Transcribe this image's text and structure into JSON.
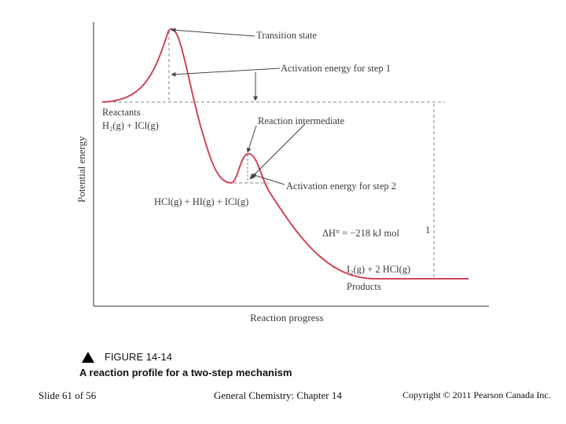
{
  "figure": {
    "axes": {
      "x_label": "Reaction progress",
      "y_label": "Potential energy"
    },
    "labels": {
      "transition_state": "Transition state",
      "activation_step1": "Activation energy for step 1",
      "reactants": "Reactants",
      "reactants_formula": "H₂(g) +   ICl(g)",
      "reaction_intermediate": "Reaction intermediate",
      "activation_step2": "Activation energy for step 2",
      "intermediate_formula": "HCl(g) + HI(g) + ICl(g)",
      "delta_h": "ΔH° = −218 kJ mol",
      "delta_h_exp": "1",
      "products_formula": "I₂(g) + 2 HCl(g)",
      "products": "Products"
    },
    "colors": {
      "curve": "#d2435a",
      "axis": "#777777",
      "guide": "#888888"
    }
  },
  "caption": {
    "figure_number": "FIGURE 14-14",
    "title": "A reaction profile for a two-step mechanism"
  },
  "footer": {
    "slide": "Slide 61 of 56",
    "course": "General Chemistry: Chapter 14",
    "copyright": "Copyright © 2011 Pearson Canada Inc."
  }
}
